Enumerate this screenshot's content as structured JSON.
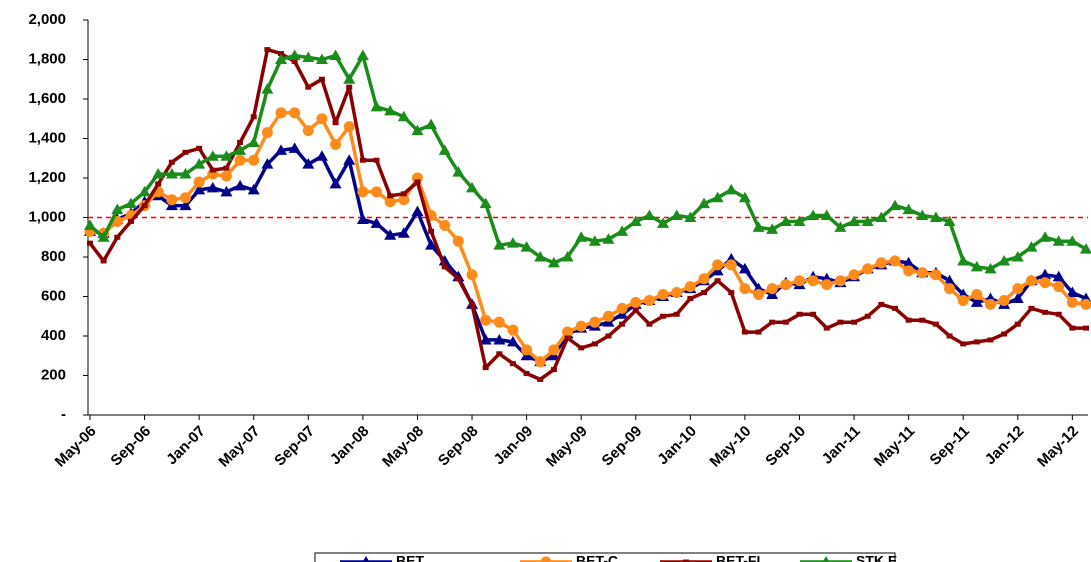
{
  "chart_data": {
    "type": "line",
    "categories": [
      "May-06",
      null,
      null,
      null,
      "Sep-06",
      null,
      null,
      null,
      "Jan-07",
      null,
      null,
      null,
      "May-07",
      null,
      null,
      null,
      "Sep-07",
      null,
      null,
      null,
      "Jan-08",
      null,
      null,
      null,
      "May-08",
      null,
      null,
      null,
      "Sep-08",
      null,
      null,
      null,
      "Jan-09",
      null,
      null,
      null,
      "May-09",
      null,
      null,
      null,
      "Sep-09",
      null,
      null,
      null,
      "Jan-10",
      null,
      null,
      null,
      "May-10",
      null,
      null,
      null,
      "Sep-10",
      null,
      null,
      null,
      "Jan-11",
      null,
      null,
      null,
      "May-11",
      null,
      null,
      null,
      "Sep-11",
      null,
      null,
      null,
      "Jan-12",
      null,
      null,
      null,
      "May-12",
      null
    ],
    "series": [
      {
        "name": "BET",
        "color": "#00008b",
        "marker": "triangle",
        "values": [
          930,
          920,
          990,
          1020,
          1080,
          1110,
          1060,
          1060,
          1140,
          1150,
          1130,
          1160,
          1140,
          1270,
          1340,
          1350,
          1270,
          1310,
          1170,
          1290,
          990,
          970,
          910,
          920,
          1030,
          860,
          780,
          700,
          560,
          380,
          380,
          370,
          300,
          270,
          300,
          410,
          440,
          450,
          470,
          510,
          560,
          580,
          600,
          620,
          640,
          680,
          730,
          790,
          740,
          640,
          610,
          670,
          660,
          700,
          690,
          670,
          700,
          740,
          760,
          780,
          770,
          720,
          720,
          680,
          610,
          570,
          590,
          560,
          590,
          680,
          710,
          700,
          620,
          590
        ]
      },
      {
        "name": "BET-C",
        "color": "#ff8c1a",
        "marker": "circle",
        "values": [
          930,
          920,
          980,
          1010,
          1060,
          1130,
          1090,
          1100,
          1180,
          1220,
          1210,
          1290,
          1290,
          1430,
          1530,
          1530,
          1440,
          1500,
          1370,
          1460,
          1130,
          1130,
          1080,
          1090,
          1200,
          1010,
          960,
          880,
          710,
          480,
          470,
          430,
          330,
          270,
          330,
          420,
          450,
          470,
          500,
          540,
          570,
          580,
          610,
          620,
          650,
          690,
          760,
          760,
          640,
          610,
          640,
          660,
          680,
          680,
          660,
          680,
          710,
          740,
          770,
          780,
          730,
          720,
          710,
          640,
          580,
          610,
          560,
          580,
          640,
          680,
          670,
          650,
          570,
          560
        ]
      },
      {
        "name": "BET-FI",
        "color": "#8b0000",
        "marker": "square",
        "values": [
          870,
          780,
          900,
          980,
          1060,
          1170,
          1280,
          1330,
          1350,
          1240,
          1250,
          1380,
          1510,
          1850,
          1830,
          1790,
          1660,
          1700,
          1480,
          1660,
          1290,
          1290,
          1110,
          1120,
          1180,
          930,
          750,
          690,
          560,
          240,
          310,
          260,
          210,
          180,
          230,
          390,
          340,
          360,
          400,
          460,
          530,
          460,
          500,
          510,
          590,
          620,
          680,
          620,
          420,
          420,
          470,
          470,
          510,
          510,
          440,
          470,
          470,
          500,
          560,
          540,
          480,
          480,
          460,
          400,
          360,
          370,
          380,
          410,
          460,
          540,
          520,
          510,
          440,
          440
        ]
      },
      {
        "name": "STK E",
        "color": "#1a8c1a",
        "marker": "triangle",
        "values": [
          960,
          900,
          1040,
          1070,
          1130,
          1220,
          1220,
          1220,
          1270,
          1310,
          1310,
          1340,
          1380,
          1650,
          1800,
          1820,
          1810,
          1800,
          1820,
          1700,
          1820,
          1560,
          1540,
          1510,
          1440,
          1470,
          1340,
          1230,
          1150,
          1070,
          860,
          870,
          850,
          800,
          770,
          800,
          900,
          880,
          890,
          930,
          980,
          1010,
          970,
          1010,
          1000,
          1070,
          1100,
          1140,
          1100,
          950,
          940,
          980,
          980,
          1010,
          1010,
          950,
          980,
          980,
          1000,
          1060,
          1040,
          1010,
          1000,
          980,
          780,
          750,
          740,
          780,
          800,
          850,
          900,
          880,
          880,
          840
        ]
      }
    ],
    "ylim": [
      0,
      2000
    ],
    "yticks": [
      {
        "value": 0,
        "label": "-"
      },
      200,
      400,
      600,
      800,
      {
        "value": 1000,
        "label": "1,000"
      },
      {
        "value": 1200,
        "label": "1,200"
      },
      {
        "value": 1400,
        "label": "1,400"
      },
      {
        "value": 1600,
        "label": "1,600"
      },
      {
        "value": 1800,
        "label": "1,800"
      },
      {
        "value": 2000,
        "label": "2,000"
      }
    ],
    "reference_line": {
      "value": 1000,
      "color": "#ff0000"
    },
    "legend": "bottom"
  }
}
